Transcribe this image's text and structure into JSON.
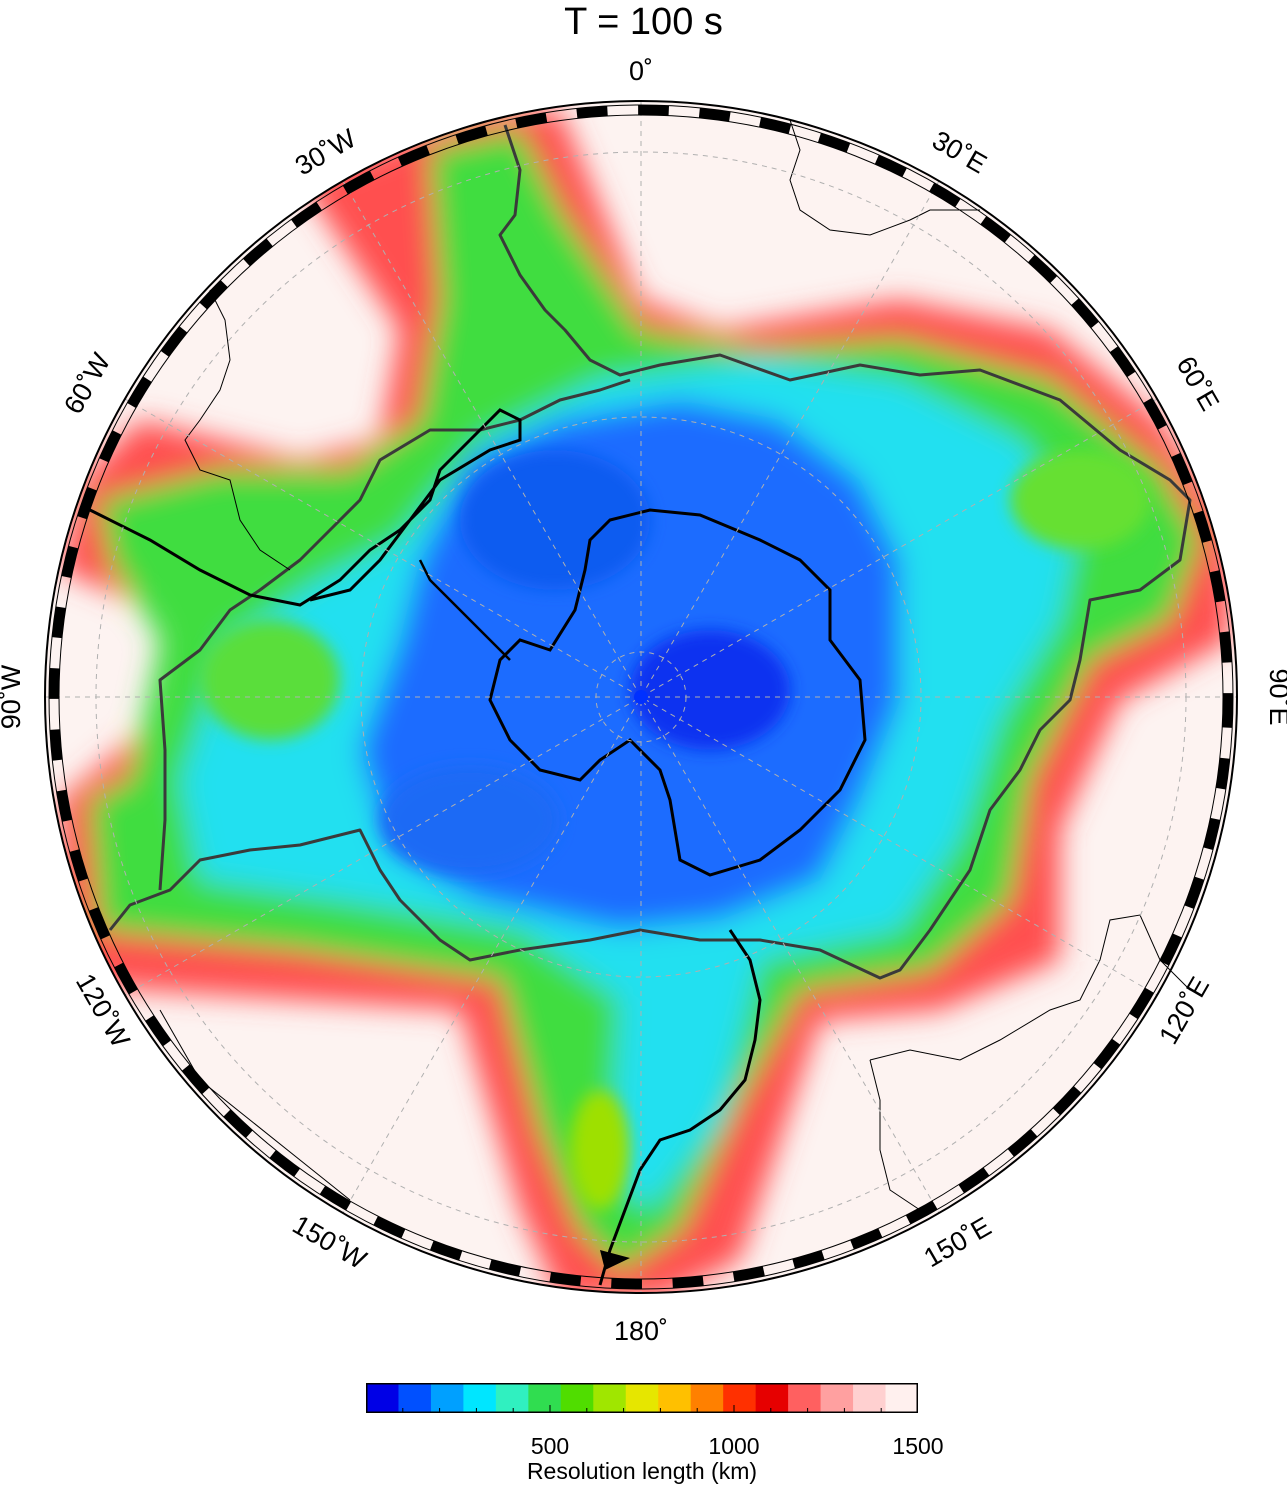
{
  "title": "T = 100 s",
  "longitude_labels": {
    "lon_0": "0˚",
    "lon_30e": "30˚E",
    "lon_60e": "60˚E",
    "lon_90e": "90˚E",
    "lon_120e": "120˚E",
    "lon_150e": "150˚E",
    "lon_180": "180˚",
    "lon_150w": "150˚W",
    "lon_120w": "120˚W",
    "lon_90w": "90˚W",
    "lon_60w": "60˚W",
    "lon_30w": "30˚W"
  },
  "colorbar": {
    "label": "Resolution length (km)",
    "min": 0,
    "max": 1500,
    "ticks": [
      "500",
      "1000",
      "1500"
    ],
    "tick_values": [
      500,
      1000,
      1500
    ],
    "colors": [
      "#0000e6",
      "#0050ff",
      "#00a0ff",
      "#00e6ff",
      "#30f0c0",
      "#30dd50",
      "#50dd00",
      "#a0e600",
      "#e6e600",
      "#ffc000",
      "#ff8000",
      "#ff3000",
      "#e60000",
      "#ff6060",
      "#ffa0a0",
      "#ffd0d0",
      "#fff0ee"
    ]
  },
  "colors": {
    "low": "#0050ff",
    "mid": "#30dd50",
    "high": "#ff3000",
    "max": "#fdf3f1",
    "plate_boundary": "#3a3a3a"
  }
}
